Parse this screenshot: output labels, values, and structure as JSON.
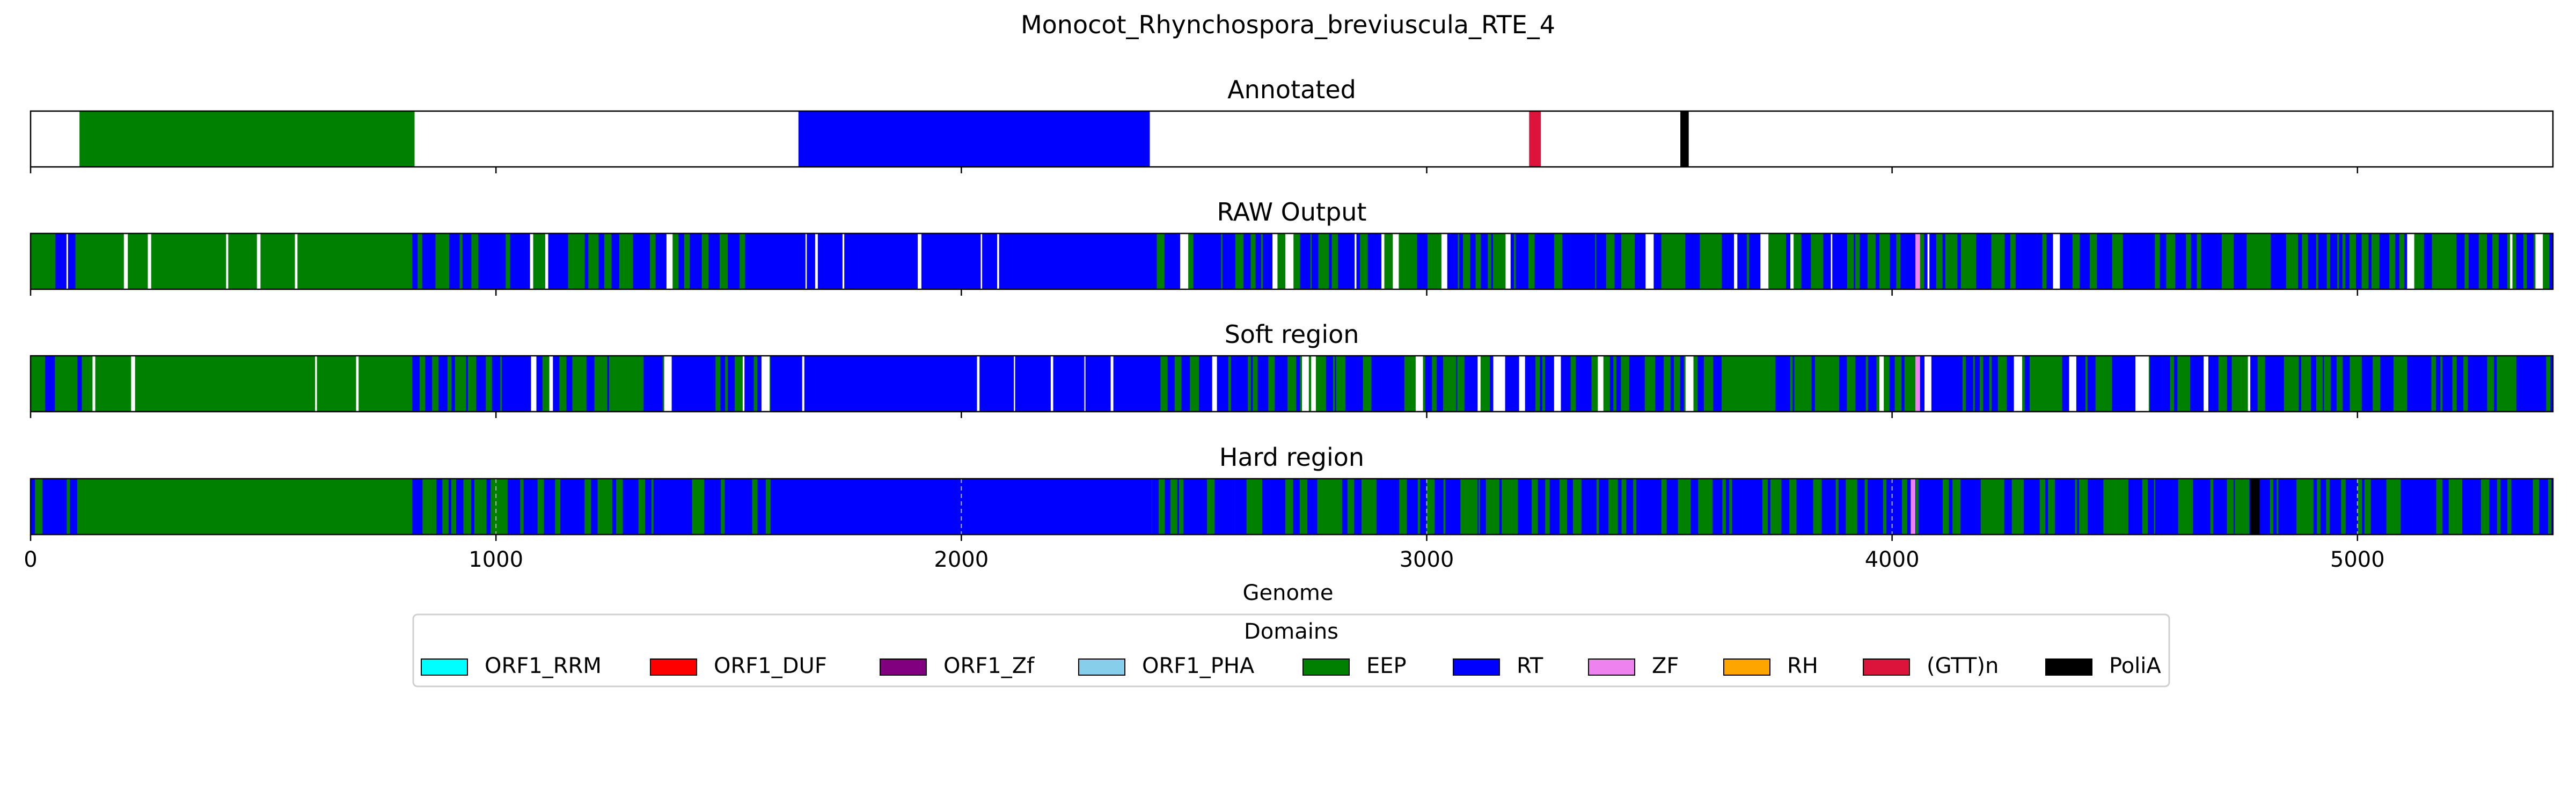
{
  "chart_data": {
    "type": "bar",
    "title": "Monocot_Rhynchospora_breviuscula_RTE_4",
    "xlabel": "Genome",
    "xlim": [
      0,
      5420
    ],
    "xticks": [
      0,
      1000,
      2000,
      3000,
      4000,
      5000
    ],
    "xtick_labels": [
      "0",
      "1000",
      "2000",
      "3000",
      "4000",
      "5000"
    ],
    "legend": {
      "title": "Domains",
      "placement": "lower-center",
      "entries": [
        {
          "name": "ORF1_RRM",
          "color": "#00ffff"
        },
        {
          "name": "ORF1_DUF",
          "color": "#ff0000"
        },
        {
          "name": "ORF1_Zf",
          "color": "#800080"
        },
        {
          "name": "ORF1_PHA",
          "color": "#87ceeb"
        },
        {
          "name": "EEP",
          "color": "#008000"
        },
        {
          "name": "RT",
          "color": "#0000ff"
        },
        {
          "name": "ZF",
          "color": "#ee82ee"
        },
        {
          "name": "RH",
          "color": "#ffa500"
        },
        {
          "name": "(GTT)n",
          "color": "#dc143c"
        },
        {
          "name": "PoliA",
          "color": "#000000"
        }
      ]
    },
    "panels": [
      {
        "title": "Annotated",
        "segments": [
          {
            "start": 105,
            "end": 825,
            "domain": "EEP"
          },
          {
            "start": 1650,
            "end": 2405,
            "domain": "RT"
          },
          {
            "start": 3220,
            "end": 3245,
            "domain": "(GTT)n"
          },
          {
            "start": 3545,
            "end": 3563,
            "domain": "PoliA"
          }
        ]
      },
      {
        "title": "RAW Output",
        "segments": [
          {
            "start": 0,
            "end": 110,
            "domain": "RT/EEP mixed"
          },
          {
            "start": 110,
            "end": 820,
            "domain": "EEP"
          },
          {
            "start": 820,
            "end": 1590,
            "domain": "RT/EEP mixed"
          },
          {
            "start": 1590,
            "end": 2420,
            "domain": "RT"
          },
          {
            "start": 2420,
            "end": 5420,
            "domain": "RT/EEP mixed"
          },
          {
            "start": 4050,
            "end": 4060,
            "domain": "ZF"
          }
        ]
      },
      {
        "title": "Soft region",
        "segments": [
          {
            "start": 0,
            "end": 110,
            "domain": "RT/EEP mixed"
          },
          {
            "start": 110,
            "end": 820,
            "domain": "EEP"
          },
          {
            "start": 820,
            "end": 1590,
            "domain": "RT/EEP mixed"
          },
          {
            "start": 1590,
            "end": 2420,
            "domain": "RT"
          },
          {
            "start": 2420,
            "end": 5420,
            "domain": "RT/EEP mixed"
          },
          {
            "start": 4050,
            "end": 4060,
            "domain": "ZF"
          }
        ]
      },
      {
        "title": "Hard region",
        "segments": [
          {
            "start": 0,
            "end": 105,
            "domain": "RT/EEP mixed"
          },
          {
            "start": 105,
            "end": 820,
            "domain": "EEP"
          },
          {
            "start": 820,
            "end": 1590,
            "domain": "RT/EEP mixed"
          },
          {
            "start": 1590,
            "end": 2410,
            "domain": "RT"
          },
          {
            "start": 2410,
            "end": 5420,
            "domain": "RT/EEP mixed"
          },
          {
            "start": 4040,
            "end": 4050,
            "domain": "ZF"
          },
          {
            "start": 4770,
            "end": 4790,
            "domain": "PoliA"
          }
        ]
      }
    ],
    "grid": "dashed vertical lines at x ticks (Hard region panel)"
  }
}
